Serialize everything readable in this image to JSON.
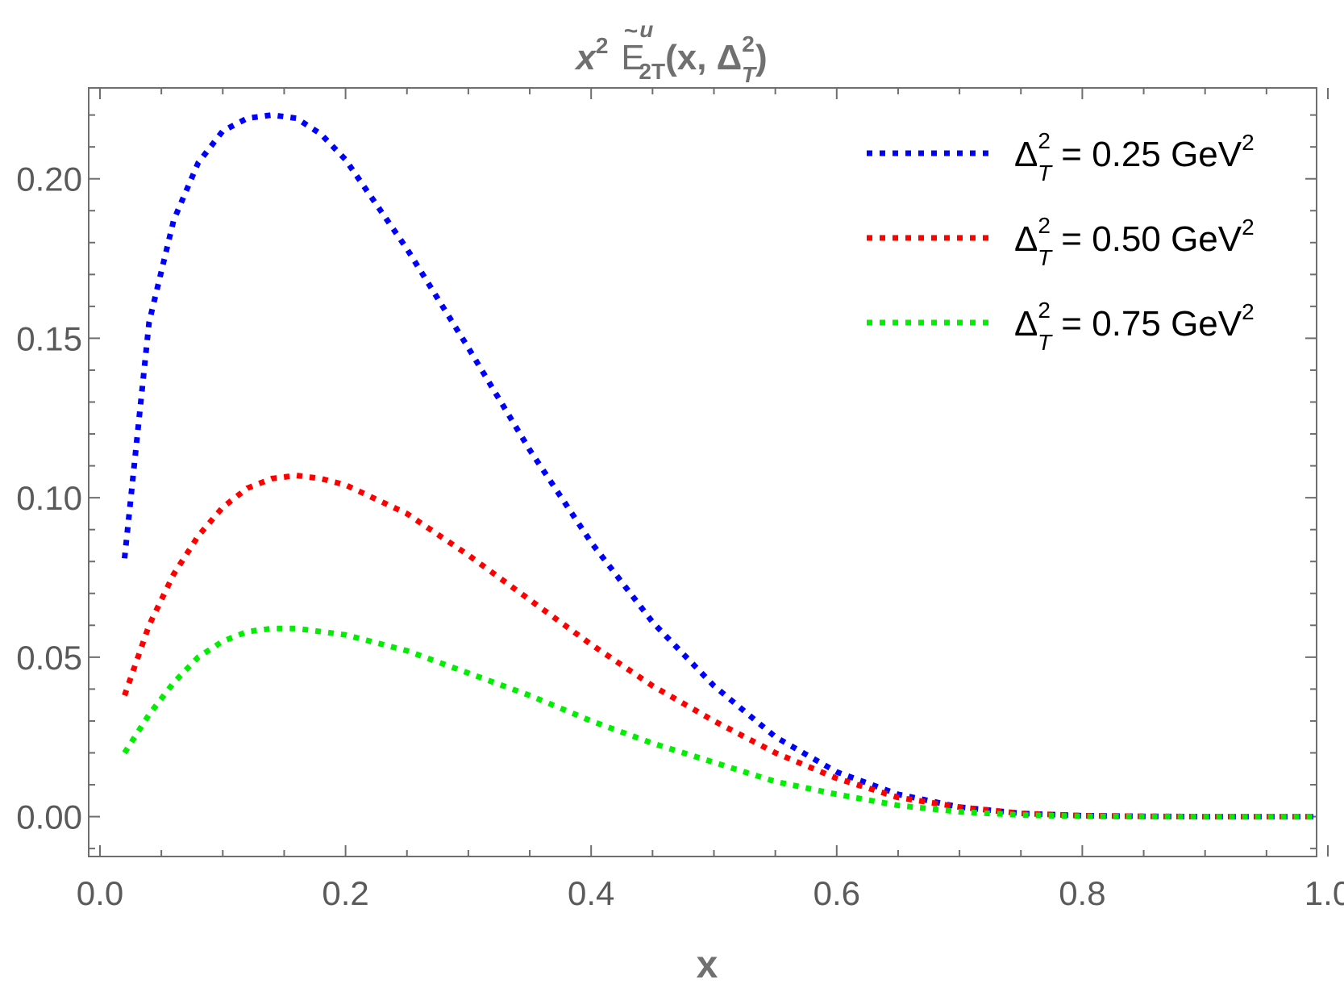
{
  "chart_data": {
    "type": "line",
    "title": {
      "prefix": "x",
      "prefix_sup": "2",
      "func": "E",
      "func_accent": "~",
      "func_sup": "u",
      "func_sub": "2T",
      "args_open": "(x, Δ",
      "args_sup": "2",
      "args_sub": "T",
      "args_close": ")"
    },
    "xlabel": "x",
    "ylabel": "",
    "xlim": [
      0.0,
      1.0
    ],
    "ylim": [
      -0.0125,
      0.2285
    ],
    "x_ticks": [
      {
        "value": 0.0,
        "label": "0.0"
      },
      {
        "value": 0.2,
        "label": "0.2"
      },
      {
        "value": 0.4,
        "label": "0.4"
      },
      {
        "value": 0.6,
        "label": "0.6"
      },
      {
        "value": 0.8,
        "label": "0.8"
      },
      {
        "value": 1.0,
        "label": "1.0"
      }
    ],
    "y_ticks": [
      {
        "value": 0.0,
        "label": "0.00"
      },
      {
        "value": 0.05,
        "label": "0.05"
      },
      {
        "value": 0.1,
        "label": "0.10"
      },
      {
        "value": 0.15,
        "label": "0.15"
      },
      {
        "value": 0.2,
        "label": "0.20"
      }
    ],
    "legend_position": "top-right",
    "grid": false,
    "x": [
      0.02,
      0.04,
      0.06,
      0.08,
      0.1,
      0.12,
      0.14,
      0.16,
      0.18,
      0.2,
      0.25,
      0.3,
      0.35,
      0.4,
      0.45,
      0.5,
      0.55,
      0.6,
      0.65,
      0.7,
      0.75,
      0.8,
      0.85,
      0.9,
      0.95,
      0.99
    ],
    "series": [
      {
        "name": "Δ",
        "label_sup": "2",
        "label_sub": "T",
        "label_text": " = 0.25 GeV",
        "label_unit_sup": "2",
        "color": "#0000ff",
        "values": [
          0.081,
          0.155,
          0.187,
          0.205,
          0.215,
          0.219,
          0.22,
          0.219,
          0.214,
          0.206,
          0.178,
          0.147,
          0.115,
          0.086,
          0.061,
          0.041,
          0.025,
          0.014,
          0.007,
          0.003,
          0.001,
          0.0003,
          0.0001,
          0.0,
          0.0,
          0.0
        ]
      },
      {
        "name": "Δ",
        "label_sup": "2",
        "label_sub": "T",
        "label_text": " = 0.50 GeV",
        "label_unit_sup": "2",
        "color": "#ff0000",
        "values": [
          0.038,
          0.06,
          0.076,
          0.088,
          0.097,
          0.103,
          0.106,
          0.107,
          0.106,
          0.104,
          0.095,
          0.082,
          0.068,
          0.054,
          0.041,
          0.03,
          0.02,
          0.012,
          0.006,
          0.003,
          0.001,
          0.0003,
          0.0001,
          0.0,
          0.0,
          0.0
        ]
      },
      {
        "name": "Δ",
        "label_sup": "2",
        "label_sub": "T",
        "label_text": " = 0.75 GeV",
        "label_unit_sup": "2",
        "color": "#00ee00",
        "values": [
          0.02,
          0.032,
          0.042,
          0.05,
          0.055,
          0.058,
          0.059,
          0.059,
          0.058,
          0.057,
          0.052,
          0.045,
          0.038,
          0.03,
          0.023,
          0.017,
          0.011,
          0.007,
          0.0035,
          0.0015,
          0.0005,
          0.0001,
          0.0,
          0.0,
          0.0,
          0.0
        ]
      }
    ]
  }
}
